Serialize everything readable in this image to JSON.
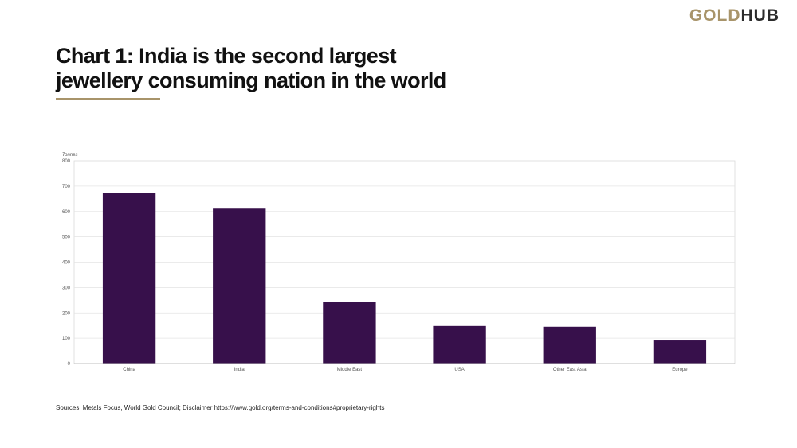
{
  "logo": {
    "part1": "GOLD",
    "part2": "HUB"
  },
  "title": {
    "line1": "Chart 1: India is the second largest",
    "line2": "jewellery consuming nation in the world"
  },
  "source": "Sources: Metals Focus, World Gold Council; Disclaimer https://www.gold.org/terms-and-conditions#proprietary-rights",
  "colors": {
    "bar": "#37104b",
    "accent": "#a8946a"
  },
  "chart_data": {
    "type": "bar",
    "categories": [
      "China",
      "India",
      "Middle East",
      "USA",
      "Other East Asia",
      "Europe"
    ],
    "values": [
      672,
      611,
      242,
      148,
      145,
      94
    ],
    "ylabel": "Tonnes",
    "ylim": [
      0,
      800
    ],
    "yticks": [
      0,
      100,
      200,
      300,
      400,
      500,
      600,
      700,
      800
    ],
    "grid": true
  }
}
